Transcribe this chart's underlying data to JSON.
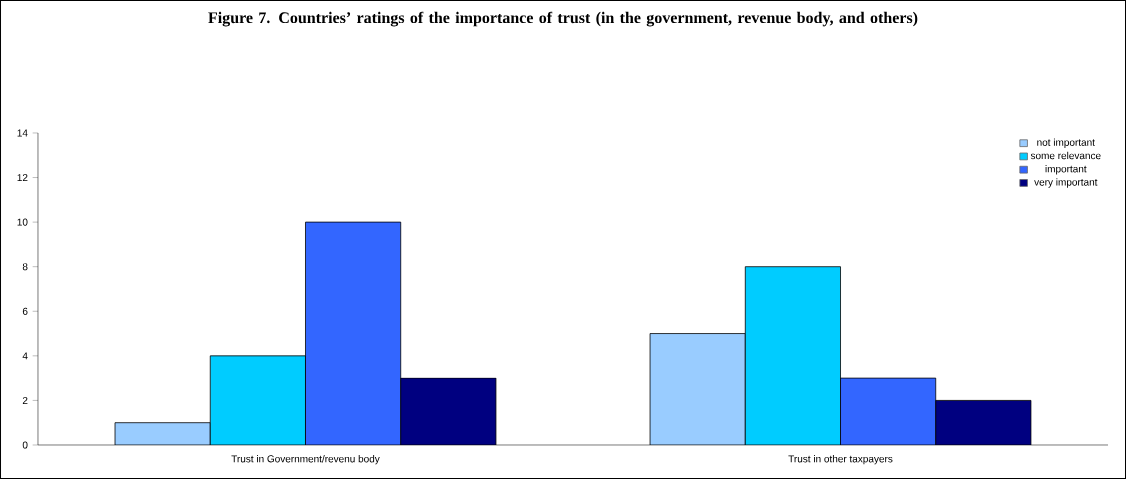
{
  "chart_data": {
    "type": "bar",
    "title": "Figure 7. Countries’ ratings of the importance of trust (in the government, revenue body, and others)",
    "categories": [
      "Trust in Government/revenu body",
      "Trust in other taxpayers"
    ],
    "series": [
      {
        "name": "not important",
        "color": "#99ccff",
        "values": [
          1,
          5
        ]
      },
      {
        "name": "some relevance",
        "color": "#00ccff",
        "values": [
          4,
          8
        ]
      },
      {
        "name": "important",
        "color": "#3366ff",
        "values": [
          10,
          3
        ]
      },
      {
        "name": "very important",
        "color": "#000080",
        "values": [
          3,
          2
        ]
      }
    ],
    "ylim": [
      0,
      14
    ],
    "yticks": [
      0,
      2,
      4,
      6,
      8,
      10,
      12,
      14
    ],
    "grid": false,
    "legend": "top right"
  }
}
